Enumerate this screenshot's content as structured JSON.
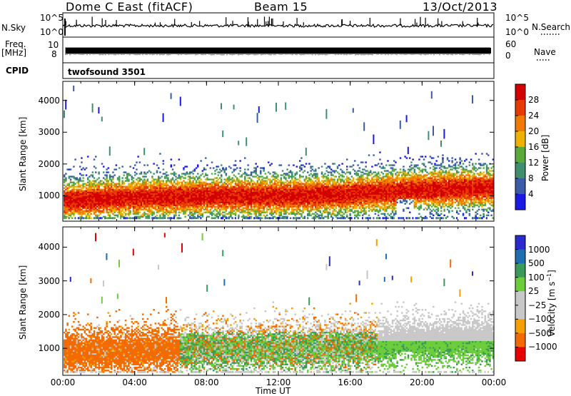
{
  "header": {
    "station": "Dome C East (fitACF)",
    "beam": "Beam 15",
    "date": "13/Oct/2013"
  },
  "top_panels": {
    "nsky_label": "N.Sky",
    "nsky_ticks": [
      "10^5",
      "10^0"
    ],
    "nsearch_label": "N.Search",
    "nsearch_ticks": [
      "10^5",
      "10^0"
    ],
    "freq_label_line1": "Freq.",
    "freq_label_line2": "[MHz]",
    "freq_ticks": [
      "10",
      "8"
    ],
    "nave_label": "Nave",
    "nave_ticks": [
      "60",
      "0"
    ],
    "cpid_label": "CPID",
    "cpid_value": "twofsound 3501"
  },
  "colors": {
    "power_scale": [
      "#1a1ae6",
      "#3a5ba8",
      "#3f8f6e",
      "#5aaa3a",
      "#f0b000",
      "#f07a00",
      "#e83a00",
      "#d40000"
    ],
    "velocity_scale": [
      "#e80000",
      "#f26a00",
      "#f5a000",
      "#c8c8c8",
      "#c8c8c8",
      "#6ccd3a",
      "#3a9a5a",
      "#1f6fb0",
      "#2a2ad0"
    ]
  },
  "chart_data": [
    {
      "type": "heatmap",
      "title": "Power",
      "xlabel": "",
      "ylabel": "Slant Range [km]",
      "x_ticks": [
        "00:00",
        "04:00",
        "08:00",
        "12:00",
        "16:00",
        "20:00",
        "00:00"
      ],
      "y_ticks": [
        "1000",
        "2000",
        "3000",
        "4000"
      ],
      "ylim": [
        200,
        4600
      ],
      "colorbar_label": "Power [dB]",
      "colorbar_ticks": [
        "4",
        "8",
        "12",
        "16",
        "20",
        "24",
        "28"
      ],
      "colorbar_range": [
        0,
        32
      ],
      "band_center_km": [
        [
          0,
          850
        ],
        [
          4,
          950
        ],
        [
          8,
          1000
        ],
        [
          12,
          1000
        ],
        [
          16,
          1050
        ],
        [
          20,
          1200
        ],
        [
          24,
          1250
        ]
      ]
    },
    {
      "type": "heatmap",
      "title": "Velocity",
      "xlabel": "Time UT",
      "ylabel": "Slant Range [km]",
      "x_ticks": [
        "00:00",
        "04:00",
        "08:00",
        "12:00",
        "16:00",
        "20:00",
        "00:00"
      ],
      "y_ticks": [
        "1000",
        "2000",
        "3000",
        "4000"
      ],
      "ylim": [
        200,
        4600
      ],
      "colorbar_label": "Velocity [m s^-1]",
      "colorbar_ticks": [
        "1000",
        "500",
        "100",
        "25",
        "−25",
        "−100",
        "−500",
        "−1000"
      ]
    }
  ]
}
